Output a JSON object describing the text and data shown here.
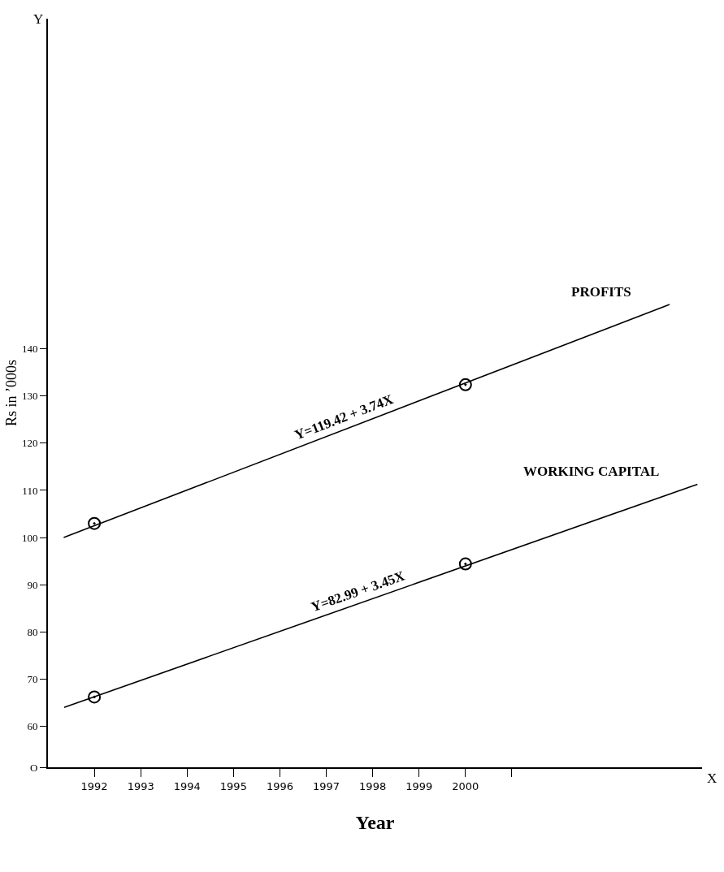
{
  "chart_data": {
    "type": "line",
    "xlabel": "Year",
    "ylabel": "Rs in ’000s",
    "xlim": [
      1991.0,
      2005.1
    ],
    "ylim": [
      51.3,
      210
    ],
    "xticks": [
      1992,
      1993,
      1994,
      1995,
      1996,
      1997,
      1998,
      1999,
      2000,
      {
        "value": 2001,
        "label": null
      }
    ],
    "yticks": [
      {
        "value": 51.3,
        "label": "O"
      },
      60,
      70,
      80,
      90,
      100,
      110,
      120,
      130,
      140
    ],
    "legend": false,
    "series": [
      {
        "name": "PROFITS",
        "color": "#000000",
        "marker": "none",
        "line_style": "solid",
        "x": [
          1991.34,
          2004.4
        ],
        "values": [
          100.0,
          149.4
        ]
      },
      {
        "name": "WORKING CAPITAL",
        "color": "#000000",
        "marker": "none",
        "line_style": "solid",
        "x": [
          1991.35,
          2005.0
        ],
        "values": [
          64.0,
          111.3
        ]
      },
      {
        "type": "scatter",
        "color": "#000000",
        "marker": "circle",
        "x": [
          1992,
          2000
        ],
        "values": [
          103.0,
          132.4
        ]
      },
      {
        "type": "scatter",
        "color": "#000000",
        "marker": "circle",
        "x": [
          1992,
          2000
        ],
        "values": [
          66.2,
          94.4
        ]
      }
    ],
    "annotations": [
      "Y",
      "X",
      "Y=119.42 + 3.74X",
      "Y=82.99 + 3.45X"
    ]
  }
}
